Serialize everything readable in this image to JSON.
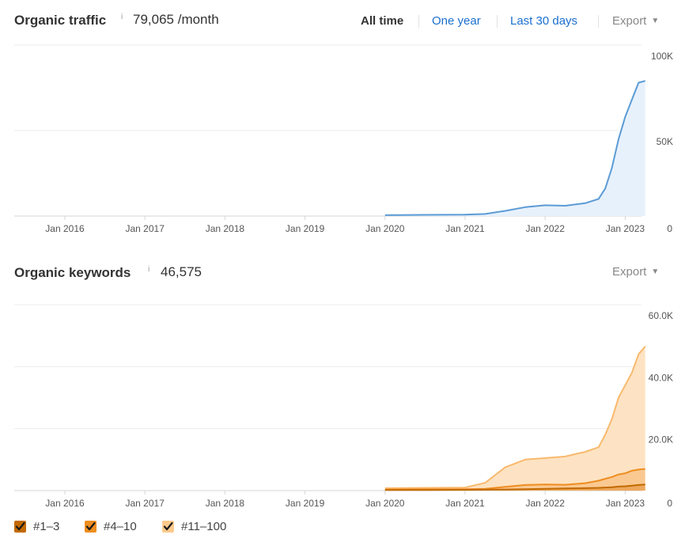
{
  "traffic": {
    "title": "Organic traffic",
    "info": "i",
    "value": "79,065 /month",
    "ranges": [
      "All time",
      "One year",
      "Last 30 days"
    ],
    "active_range": "All time",
    "export_label": "Export",
    "y_labels": [
      "100K",
      "50K",
      "0"
    ],
    "x_labels": [
      "Jan 2016",
      "Jan 2017",
      "Jan 2018",
      "Jan 2019",
      "Jan 2020",
      "Jan 2021",
      "Jan 2022",
      "Jan 2023"
    ]
  },
  "keywords": {
    "title": "Organic keywords",
    "info": "i",
    "value": "46,575",
    "export_label": "Export",
    "y_labels": [
      "60.0K",
      "40.0K",
      "20.0K",
      "0"
    ],
    "x_labels": [
      "Jan 2016",
      "Jan 2017",
      "Jan 2018",
      "Jan 2019",
      "Jan 2020",
      "Jan 2021",
      "Jan 2022",
      "Jan 2023"
    ]
  },
  "legend": [
    {
      "label": "#1–3",
      "color": "#c26a00",
      "checked": true
    },
    {
      "label": "#4–10",
      "color": "#ee8d1f",
      "checked": true
    },
    {
      "label": "#11–100",
      "color": "#fdca8c",
      "checked": true
    }
  ],
  "colors": {
    "traffic_line": "#5b9bd5",
    "traffic_fill": "#e7f1fc",
    "kw_top3": "#c26a00",
    "kw_top10": "#ee8d1f",
    "kw_top100": "#f9b96d",
    "kw_top100_fill": "#fde3c3",
    "grid": "#ececec"
  },
  "chart_data": [
    {
      "type": "area",
      "title": "Organic traffic",
      "xlabel": "",
      "ylabel": "",
      "ylim": [
        0,
        100000
      ],
      "grid": true,
      "series": [
        {
          "x": [
            "2020-01",
            "2020-07",
            "2021-01",
            "2021-04",
            "2021-07",
            "2021-10",
            "2022-01",
            "2022-04",
            "2022-07",
            "2022-09",
            "2022-10",
            "2022-11",
            "2022-12",
            "2023-01",
            "2023-02",
            "2023-03",
            "2023-04"
          ],
          "values": [
            500,
            700,
            800,
            1200,
            3000,
            5200,
            6300,
            6000,
            7500,
            10000,
            16000,
            28000,
            45000,
            58000,
            68000,
            78000,
            79065
          ]
        }
      ]
    },
    {
      "type": "area",
      "title": "Organic keywords",
      "xlabel": "",
      "ylabel": "",
      "ylim": [
        0,
        60000
      ],
      "grid": true,
      "legend": "bottom-left",
      "x": [
        "2020-01",
        "2020-07",
        "2021-01",
        "2021-04",
        "2021-07",
        "2021-10",
        "2022-01",
        "2022-04",
        "2022-07",
        "2022-09",
        "2022-10",
        "2022-11",
        "2022-12",
        "2023-01",
        "2023-02",
        "2023-03",
        "2023-04"
      ],
      "series": [
        {
          "name": "#1–3",
          "values": [
            200,
            200,
            250,
            300,
            350,
            450,
            600,
            700,
            800,
            900,
            1000,
            1100,
            1300,
            1400,
            1600,
            1800,
            2000
          ]
        },
        {
          "name": "#4–10",
          "values": [
            350,
            400,
            450,
            600,
            1200,
            1800,
            2000,
            1900,
            2400,
            3200,
            3800,
            4400,
            5200,
            5600,
            6400,
            6800,
            7000
          ]
        },
        {
          "name": "#11–100",
          "values": [
            800,
            900,
            1000,
            2500,
            7500,
            10000,
            10500,
            11000,
            12500,
            14000,
            18000,
            23000,
            30000,
            34000,
            38000,
            44000,
            46575
          ]
        }
      ]
    }
  ]
}
